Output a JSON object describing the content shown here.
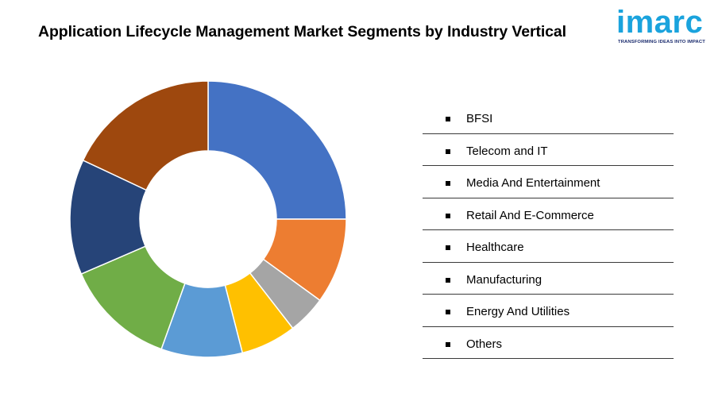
{
  "title": "Application Lifecycle Management Market Segments by Industry Vertical",
  "logo": {
    "word": "imarc",
    "tagline": "TRANSFORMING IDEAS INTO IMPACT",
    "color": "#1aa3dd",
    "tagline_color": "#1a2b6d"
  },
  "chart_data": {
    "type": "pie",
    "donut": true,
    "title": "Application Lifecycle Management Market Segments by Industry Vertical",
    "legend_position": "right",
    "categories": [
      "BFSI",
      "Telecom and IT",
      "Media And Entertainment",
      "Retail And E-Commerce",
      "Healthcare",
      "Manufacturing",
      "Energy And Utilities",
      "Others"
    ],
    "values": [
      25,
      10,
      4.5,
      6.5,
      9.5,
      13,
      13.5,
      18
    ],
    "slice_order_clockwise_from_top": [
      "BFSI",
      "Telecom and IT",
      "Media And Entertainment",
      "Retail And E-Commerce",
      "Healthcare",
      "Manufacturing",
      "Energy And Utilities",
      "Others"
    ],
    "colors": [
      "#4472c4",
      "#ed7d31",
      "#a5a5a5",
      "#ffc000",
      "#5b9bd5",
      "#70ad47",
      "#264478",
      "#9e480e"
    ]
  },
  "legend": {
    "items": [
      {
        "label": "BFSI"
      },
      {
        "label": "Telecom and IT"
      },
      {
        "label": "Media And Entertainment"
      },
      {
        "label": "Retail And E-Commerce"
      },
      {
        "label": "Healthcare"
      },
      {
        "label": "Manufacturing"
      },
      {
        "label": "Energy And Utilities"
      },
      {
        "label": "Others"
      }
    ]
  }
}
